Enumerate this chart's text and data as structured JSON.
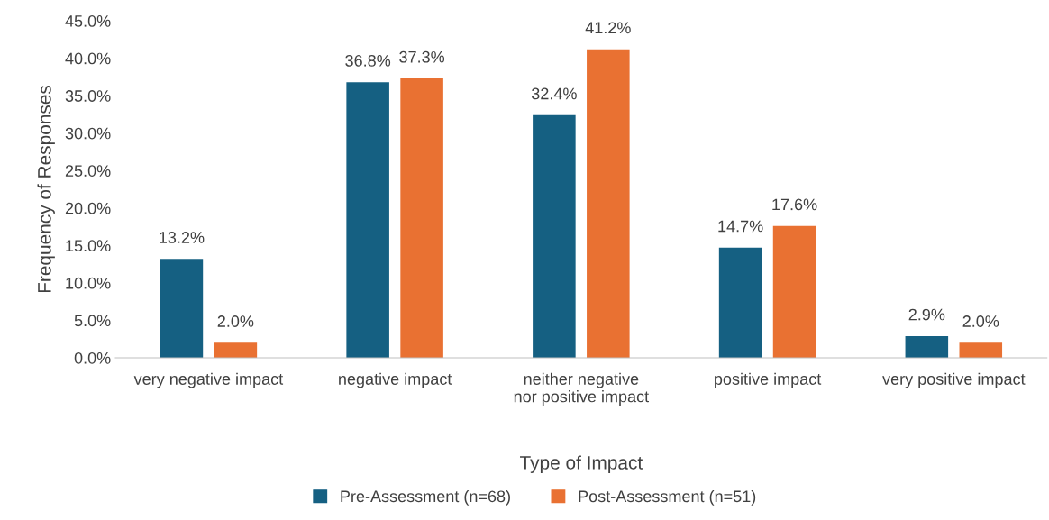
{
  "chart_data": {
    "type": "bar",
    "xlabel": "Type of Impact",
    "ylabel": "Frequency of Responses",
    "categories": [
      "very negative impact",
      "negative impact",
      "neither negative nor positive impact",
      "positive impact",
      "very positive impact"
    ],
    "series": [
      {
        "name": "Pre-Assessment (n=68)",
        "color": "#156082",
        "values": [
          13.2,
          36.8,
          32.4,
          14.7,
          2.9
        ],
        "value_labels": [
          "13.2%",
          "36.8%",
          "32.4%",
          "14.7%",
          "2.9%"
        ]
      },
      {
        "name": "Post-Assessment (n=51)",
        "color": "#e97132",
        "values": [
          2.0,
          37.3,
          41.2,
          17.6,
          2.0
        ],
        "value_labels": [
          "2.0%",
          "37.3%",
          "41.2%",
          "17.6%",
          "2.0%"
        ]
      }
    ],
    "ylim": [
      0,
      45
    ],
    "yticks": [
      {
        "value": 0,
        "label": "0.0%"
      },
      {
        "value": 5,
        "label": "5.0%"
      },
      {
        "value": 10,
        "label": "10.0%"
      },
      {
        "value": 15,
        "label": "15.0%"
      },
      {
        "value": 20,
        "label": "20.0%"
      },
      {
        "value": 25,
        "label": "25.0%"
      },
      {
        "value": 30,
        "label": "30.0%"
      },
      {
        "value": 35,
        "label": "35.0%"
      },
      {
        "value": 40,
        "label": "40.0%"
      },
      {
        "value": 45,
        "label": "45.0%"
      }
    ],
    "grid": false,
    "legend": "bottom"
  }
}
